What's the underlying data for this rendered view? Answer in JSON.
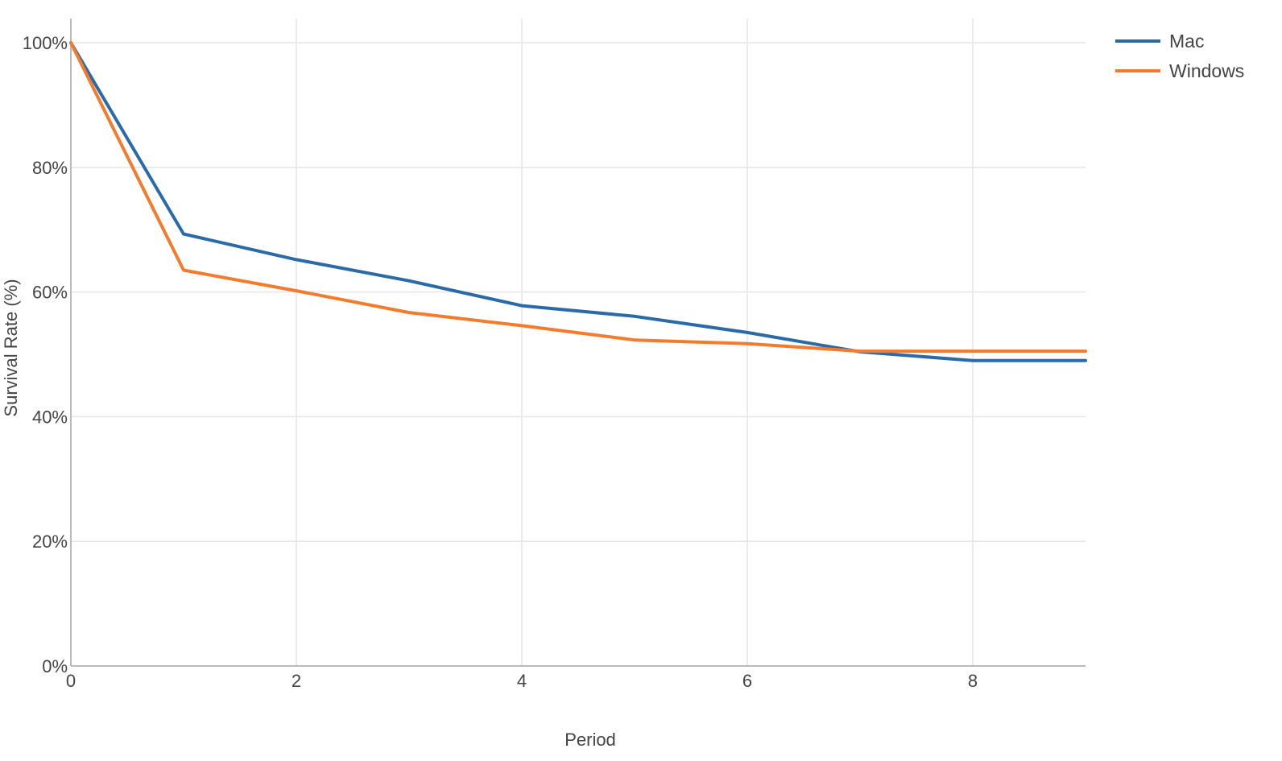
{
  "chart_data": {
    "type": "line",
    "title": "",
    "xlabel": "Period",
    "ylabel": "Survival Rate (%)",
    "x": [
      0,
      1,
      2,
      3,
      4,
      5,
      6,
      7,
      8,
      9
    ],
    "xlim": [
      0,
      9
    ],
    "ylim": [
      0,
      100
    ],
    "xticks": [
      0,
      2,
      4,
      6,
      8
    ],
    "yticks": [
      0,
      20,
      40,
      60,
      80,
      100
    ],
    "ytick_format": "percent",
    "grid": true,
    "legend_position": "top-right",
    "series": [
      {
        "name": "Mac",
        "color": "#2a6aa8",
        "values": [
          100,
          69.3,
          65.2,
          61.8,
          57.8,
          56.1,
          53.5,
          50.4,
          49.0,
          49.0
        ]
      },
      {
        "name": "Windows",
        "color": "#f47a2c",
        "values": [
          100,
          63.5,
          60.2,
          56.7,
          54.6,
          52.3,
          51.7,
          50.5,
          50.5,
          50.5
        ]
      }
    ]
  }
}
